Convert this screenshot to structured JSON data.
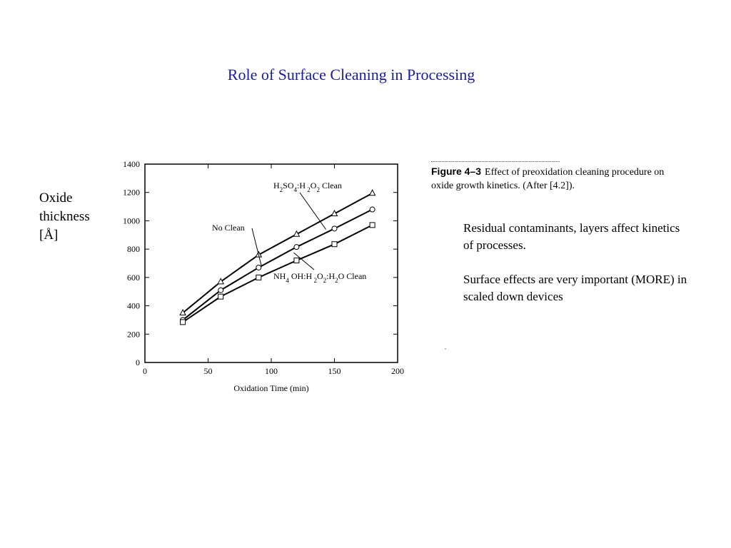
{
  "slide": {
    "title": "Role of Surface Cleaning in Processing",
    "y_label_lines": [
      "Oxide",
      "thickness",
      "[Å]"
    ]
  },
  "figure": {
    "number": "Figure 4–3",
    "caption": "Effect of preoxidation cleaning procedure on oxide growth kinetics. (After [4.2])."
  },
  "notes": [
    "Residual contaminants, layers affect kinetics of processes.",
    "Surface effects are very important (MORE) in scaled down devices"
  ],
  "chart_data": {
    "type": "line",
    "xlabel": "Oxidation Time (min)",
    "ylabel": "",
    "xlim": [
      0,
      200
    ],
    "ylim": [
      0,
      1400
    ],
    "x_ticks": [
      0,
      50,
      100,
      150,
      200
    ],
    "y_ticks": [
      0,
      200,
      400,
      600,
      800,
      1000,
      1200,
      1400
    ],
    "grid": false,
    "legend": "none",
    "x": [
      30,
      60,
      90,
      120,
      150,
      180
    ],
    "series": [
      {
        "name": "H2SO4:H2O2 Clean",
        "marker": "triangle",
        "values": [
          350,
          570,
          760,
          905,
          1050,
          1195
        ]
      },
      {
        "name": "No Clean",
        "marker": "circle",
        "values": [
          300,
          510,
          670,
          815,
          945,
          1080
        ]
      },
      {
        "name": "NH4OH:H2O2:H2O Clean",
        "marker": "square",
        "values": [
          285,
          465,
          600,
          720,
          835,
          970
        ]
      }
    ]
  }
}
